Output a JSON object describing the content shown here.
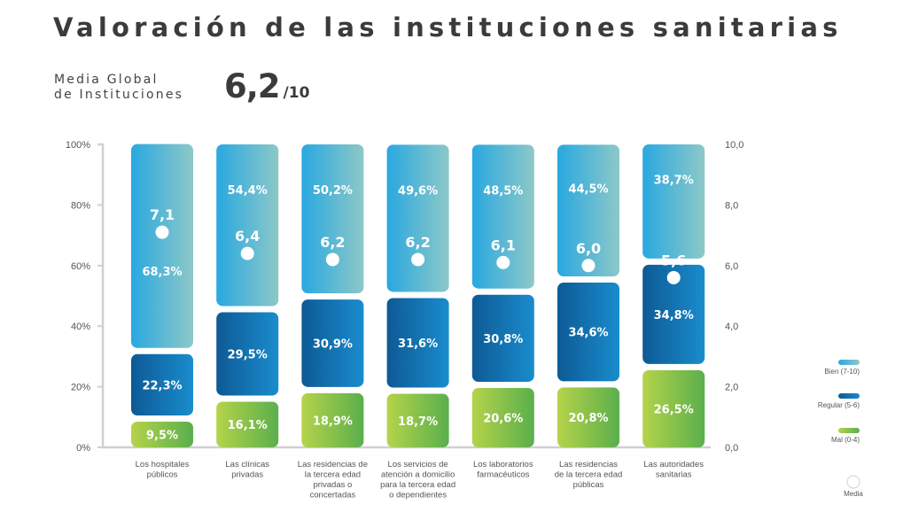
{
  "header": {
    "title": "Valoración de las instituciones sanitarias",
    "subtitle_line1": "Media Global",
    "subtitle_line2": "de Instituciones",
    "global_mean": "6,2",
    "global_mean_scale": "/10"
  },
  "chart_data": {
    "type": "bar",
    "stacked": true,
    "title": "Valoración de las instituciones sanitarias",
    "xlabel": "",
    "ylabel": "",
    "ylim": [
      0,
      100
    ],
    "y2lim": [
      0,
      10
    ],
    "grid": false,
    "legend_position": "right",
    "y_ticks": [
      "0%",
      "20%",
      "40%",
      "60%",
      "80%",
      "100%"
    ],
    "y2_ticks": [
      "0,0",
      "2,0",
      "4,0",
      "6,0",
      "8,0",
      "10,0"
    ],
    "categories": [
      [
        "Los hospitales",
        "públicos"
      ],
      [
        "Las clínicas",
        "privadas"
      ],
      [
        "Las residencias de",
        "la tercera edad",
        "privadas o",
        "concertadas"
      ],
      [
        "Los servicios de",
        "atención a domicilio",
        "para la tercera edad",
        "o dependientes"
      ],
      [
        "Los laboratorios",
        "farmacéuticos"
      ],
      [
        "Las residencias",
        "de la tercera edad",
        "públicas"
      ],
      [
        "Las autoridades",
        "sanitarias"
      ]
    ],
    "series": [
      {
        "name": "Mal (0-4)",
        "key": "mal",
        "values": [
          9.5,
          16.1,
          18.9,
          18.7,
          20.6,
          20.8,
          26.5
        ],
        "labels": [
          "9,5%",
          "16,1%",
          "18,9%",
          "18,7%",
          "20,6%",
          "20,8%",
          "26,5%"
        ],
        "colors": [
          "#b5d34a",
          "#5aaf4c"
        ]
      },
      {
        "name": "Regular (5-6)",
        "key": "regular",
        "values": [
          22.3,
          29.5,
          30.9,
          31.6,
          30.8,
          34.6,
          34.8
        ],
        "labels": [
          "22,3%",
          "29,5%",
          "30,9%",
          "31,6%",
          "30,8%",
          "34,6%",
          "34,8%"
        ],
        "colors": [
          "#0d5a95",
          "#1a8ccd"
        ]
      },
      {
        "name": "Bien (7-10)",
        "key": "bien",
        "values": [
          68.3,
          54.4,
          50.2,
          49.6,
          48.5,
          44.5,
          38.7
        ],
        "labels": [
          "68,3%",
          "54,4%",
          "50,2%",
          "49,6%",
          "48,5%",
          "44,5%",
          "38,7%"
        ],
        "colors": [
          "#29a8e0",
          "#8dc8c8"
        ]
      }
    ],
    "mean": {
      "name": "Media",
      "values": [
        7.1,
        6.4,
        6.2,
        6.2,
        6.1,
        6.0,
        5.6
      ],
      "labels": [
        "7,1",
        "6,4",
        "6,2",
        "6,2",
        "6,1",
        "6,0",
        "5,6"
      ]
    },
    "legend": [
      "Bien (7-10)",
      "Regular (5-6)",
      "Mal (0-4)",
      "Media"
    ]
  }
}
